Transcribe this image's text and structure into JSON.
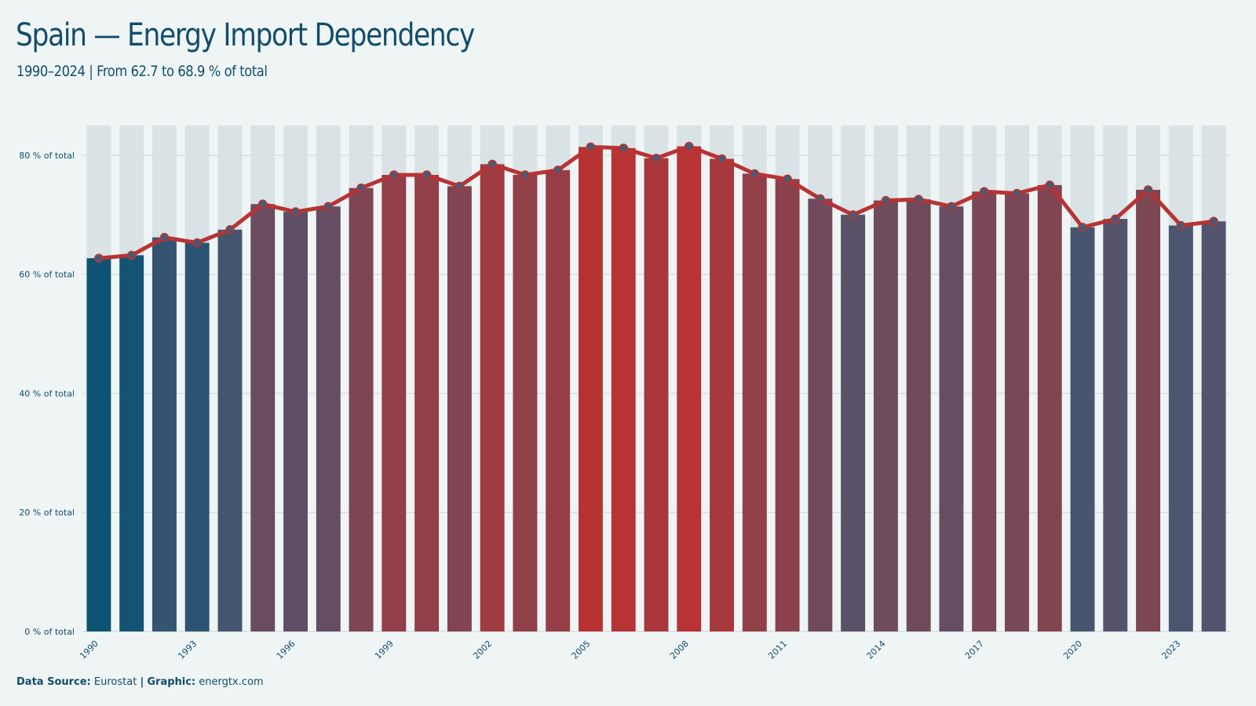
{
  "header": {
    "title": "Spain — Energy Import Dependency",
    "subtitle": "1990–2024 | From 62.7 to 68.9 % of total"
  },
  "footer": {
    "source_label": "Data Source:",
    "source_value": "Eurostat",
    "separator": "|",
    "graphic_label": "Graphic:",
    "graphic_value": "energtx.com"
  },
  "colors": {
    "low": "#0f5373",
    "mid": "#4d5570",
    "high": "#b83333",
    "line": "#b83333",
    "marker": "#4b5a72",
    "background": "#eff5f5",
    "grid": "#d6e0e2",
    "text": "#124d6b"
  },
  "chart_data": {
    "type": "bar",
    "overlay": "line",
    "categories": [
      "1990",
      "1991",
      "1992",
      "1993",
      "1994",
      "1995",
      "1996",
      "1997",
      "1998",
      "1999",
      "2000",
      "2001",
      "2002",
      "2003",
      "2004",
      "2005",
      "2006",
      "2007",
      "2008",
      "2009",
      "2010",
      "2011",
      "2012",
      "2013",
      "2014",
      "2015",
      "2016",
      "2017",
      "2018",
      "2019",
      "2020",
      "2021",
      "2022",
      "2023",
      "2024"
    ],
    "tick_labels": [
      "1990",
      "1993",
      "1996",
      "1999",
      "2002",
      "2005",
      "2008",
      "2011",
      "2014",
      "2017",
      "2020",
      "2023"
    ],
    "values": [
      62.7,
      63.2,
      66.2,
      65.3,
      67.5,
      71.8,
      70.5,
      71.4,
      74.5,
      76.7,
      76.7,
      74.8,
      78.5,
      76.7,
      77.5,
      81.4,
      81.2,
      79.5,
      81.5,
      79.4,
      76.9,
      76.0,
      72.7,
      70.0,
      72.4,
      72.6,
      71.4,
      73.9,
      73.6,
      75.0,
      67.9,
      69.3,
      74.2,
      68.2,
      68.9
    ],
    "ylim": [
      0,
      85
    ],
    "yticks": [
      0,
      20,
      40,
      60,
      80
    ],
    "y_unit": "% of total",
    "grid": true,
    "legend": "none"
  }
}
